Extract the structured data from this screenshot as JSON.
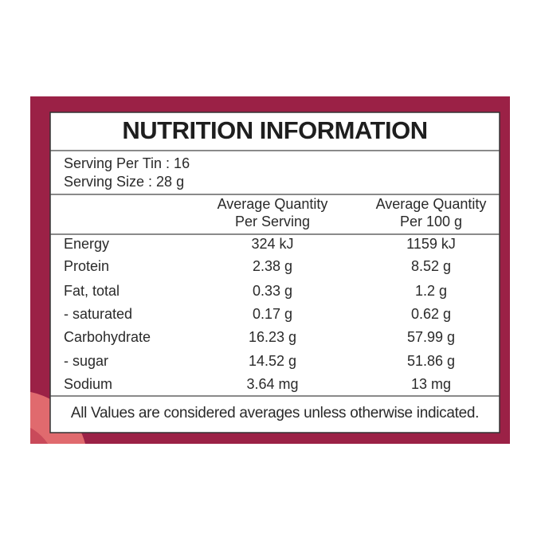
{
  "title": "NUTRITION INFORMATION",
  "serving": [
    "Serving Per Tin : 16",
    "Serving Size : 28 g"
  ],
  "header": {
    "per_serving": [
      "Average Quantity",
      "Per Serving"
    ],
    "per_100g": [
      "Average Quantity",
      "Per 100 g"
    ]
  },
  "rows": [
    [
      "Energy",
      "324 kJ",
      "1159 kJ"
    ],
    [
      "Protein",
      "2.38 g",
      "8.52 g"
    ],
    [
      "Fat, total",
      "0.33 g",
      "1.2 g"
    ],
    [
      "- saturated",
      "0.17 g",
      "0.62 g"
    ],
    [
      "Carbohydrate",
      "16.23 g",
      "57.99 g"
    ],
    [
      "- sugar",
      "14.52 g",
      "51.86 g"
    ],
    [
      "Sodium",
      "3.64 mg",
      "13 mg"
    ]
  ],
  "footer": "All Values are considered averages unless otherwise indicated."
}
